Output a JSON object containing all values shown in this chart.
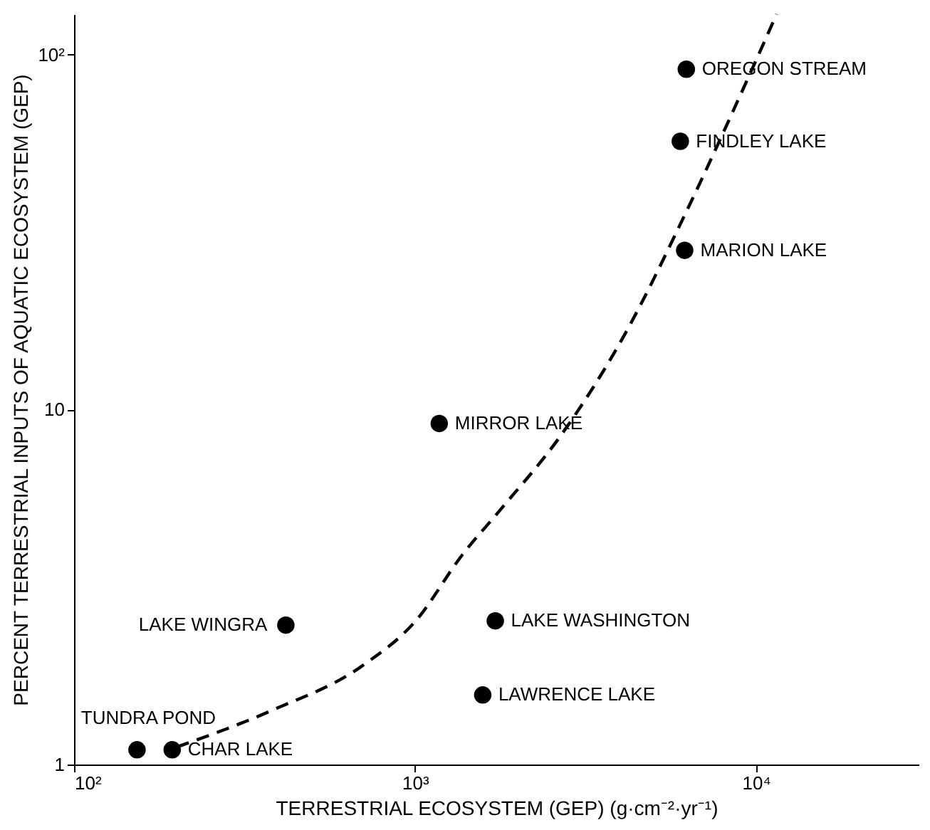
{
  "chart_data": {
    "type": "scatter",
    "xlabel": "TERRESTRIAL ECOSYSTEM (GEP) (g·cm⁻²·yr⁻¹)",
    "ylabel": "PERCENT TERRESTRIAL INPUTS OF AQUATIC ECOSYSTEM (GEP)",
    "log": "xy",
    "grid": false,
    "xlim": [
      100,
      30000
    ],
    "ylim": [
      1,
      130
    ],
    "xticks": [
      {
        "value": 100,
        "label": "10²"
      },
      {
        "value": 1000,
        "label": "10³"
      },
      {
        "value": 10000,
        "label": "10⁴"
      }
    ],
    "yticks": [
      1,
      10,
      {
        "value": 100,
        "label": "10²"
      }
    ],
    "series": [
      {
        "color": "#000000",
        "marker": "circle",
        "x": [
          153,
          194,
          418,
          1178,
          6250,
          6000,
          6180,
          1720,
          1580
        ],
        "values": [
          1.1,
          1.1,
          2.47,
          9.14,
          91,
          57,
          28.1,
          2.54,
          1.57
        ]
      },
      {
        "type": "line",
        "color": "#000000",
        "line_style": "dashed",
        "marker": "none",
        "x": [
          200,
          380,
          702,
          1005,
          1380,
          1780,
          2650,
          4080,
          6300,
          9380,
          11500
        ],
        "values": [
          1.12,
          1.42,
          1.9,
          2.54,
          3.91,
          5.22,
          8.34,
          16.0,
          36.7,
          84,
          130
        ]
      }
    ],
    "annotations": [
      {
        "text": "TUNDRA POND",
        "x": 153,
        "y": 1.1
      },
      {
        "text": "CHAR LAKE",
        "x": 194,
        "y": 1.1
      },
      {
        "text": "LAKE WINGRA",
        "x": 418,
        "y": 2.47
      },
      {
        "text": "MIRROR LAKE",
        "x": 1178,
        "y": 9.14
      },
      {
        "text": "OREGON STREAM",
        "x": 6250,
        "y": 91
      },
      {
        "text": "FINDLEY LAKE",
        "x": 6000,
        "y": 57
      },
      {
        "text": "MARION LAKE",
        "x": 6180,
        "y": 28.1
      },
      {
        "text": "LAKE WASHINGTON",
        "x": 1720,
        "y": 2.54
      },
      {
        "text": "LAWRENCE LAKE",
        "x": 1580,
        "y": 1.57
      }
    ]
  }
}
